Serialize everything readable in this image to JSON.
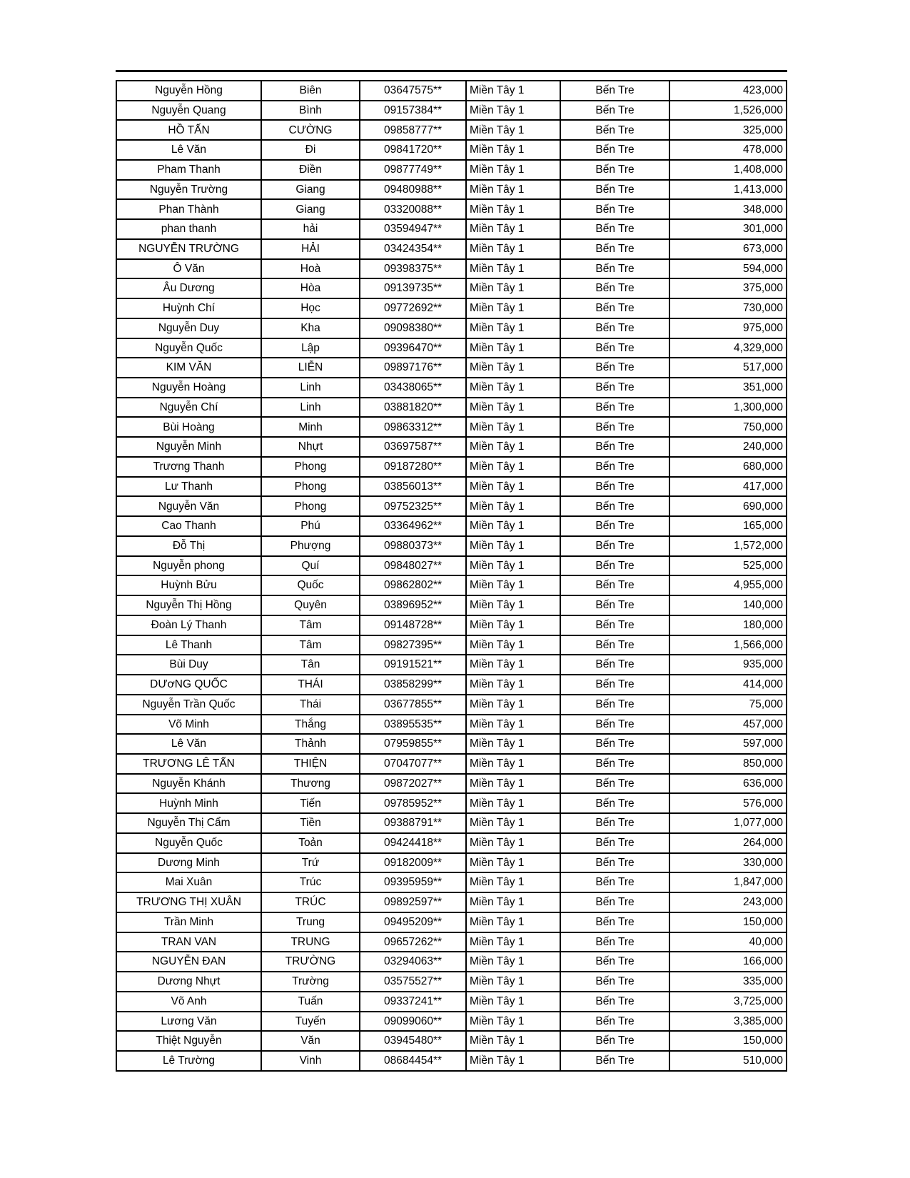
{
  "page": {
    "background": "#ffffff",
    "colors": {
      "border": "#000000",
      "text": "#000000"
    }
  },
  "table": {
    "region_label": "Miền Tây 1",
    "province_label": "Bến Tre",
    "columns": [
      "first_name",
      "last_name",
      "phone",
      "region",
      "province",
      "amount"
    ],
    "rows": [
      {
        "first_name": "Nguyễn Hồng",
        "last_name": "Biên",
        "phone": "03647575**",
        "region": "Miền Tây 1",
        "province": "Bến Tre",
        "amount": "423,000"
      },
      {
        "first_name": "Nguyễn Quang",
        "last_name": "Bình",
        "phone": "09157384**",
        "region": "Miền Tây 1",
        "province": "Bến Tre",
        "amount": "1,526,000"
      },
      {
        "first_name": "HỒ TẤN",
        "last_name": "CƯỜNG",
        "phone": "09858777**",
        "region": "Miền Tây 1",
        "province": "Bến Tre",
        "amount": "325,000"
      },
      {
        "first_name": "Lê Văn",
        "last_name": "Đi",
        "phone": "09841720**",
        "region": "Miền Tây 1",
        "province": "Bến Tre",
        "amount": "478,000"
      },
      {
        "first_name": "Pham Thanh",
        "last_name": "Điền",
        "phone": "09877749**",
        "region": "Miền Tây 1",
        "province": "Bến Tre",
        "amount": "1,408,000"
      },
      {
        "first_name": "Nguyễn Trường",
        "last_name": "Giang",
        "phone": "09480988**",
        "region": "Miền Tây 1",
        "province": "Bến Tre",
        "amount": "1,413,000"
      },
      {
        "first_name": "Phan Thành",
        "last_name": "Giang",
        "phone": "03320088**",
        "region": "Miền Tây 1",
        "province": "Bến Tre",
        "amount": "348,000"
      },
      {
        "first_name": "phan thanh",
        "last_name": "hải",
        "phone": "03594947**",
        "region": "Miền Tây 1",
        "province": "Bến Tre",
        "amount": "301,000"
      },
      {
        "first_name": "NGUYỄN TRƯỜNG",
        "last_name": "HẢI",
        "phone": "03424354**",
        "region": "Miền Tây 1",
        "province": "Bến Tre",
        "amount": "673,000"
      },
      {
        "first_name": "Ô Văn",
        "last_name": "Hoà",
        "phone": "09398375**",
        "region": "Miền Tây 1",
        "province": "Bến Tre",
        "amount": "594,000"
      },
      {
        "first_name": "Âu Dương",
        "last_name": "Hòa",
        "phone": "09139735**",
        "region": "Miền Tây 1",
        "province": "Bến Tre",
        "amount": "375,000"
      },
      {
        "first_name": "Huỳnh Chí",
        "last_name": "Học",
        "phone": "09772692**",
        "region": "Miền Tây 1",
        "province": "Bến Tre",
        "amount": "730,000"
      },
      {
        "first_name": "Nguyễn Duy",
        "last_name": "Kha",
        "phone": "09098380**",
        "region": "Miền Tây 1",
        "province": "Bến Tre",
        "amount": "975,000"
      },
      {
        "first_name": "Nguyễn Quốc",
        "last_name": "Lập",
        "phone": "09396470**",
        "region": "Miền Tây 1",
        "province": "Bến Tre",
        "amount": "4,329,000"
      },
      {
        "first_name": "KIM VĂN",
        "last_name": "LIỄN",
        "phone": "09897176**",
        "region": "Miền Tây 1",
        "province": "Bến Tre",
        "amount": "517,000"
      },
      {
        "first_name": "Nguyễn Hoàng",
        "last_name": "Linh",
        "phone": "03438065**",
        "region": "Miền Tây 1",
        "province": "Bến Tre",
        "amount": "351,000"
      },
      {
        "first_name": "Nguyễn Chí",
        "last_name": "Linh",
        "phone": "03881820**",
        "region": "Miền Tây 1",
        "province": "Bến Tre",
        "amount": "1,300,000"
      },
      {
        "first_name": "Bùi Hoàng",
        "last_name": "Minh",
        "phone": "09863312**",
        "region": "Miền Tây 1",
        "province": "Bến Tre",
        "amount": "750,000"
      },
      {
        "first_name": "Nguyễn Minh",
        "last_name": "Nhựt",
        "phone": "03697587**",
        "region": "Miền Tây 1",
        "province": "Bến Tre",
        "amount": "240,000"
      },
      {
        "first_name": "Trương Thanh",
        "last_name": "Phong",
        "phone": "09187280**",
        "region": "Miền Tây 1",
        "province": "Bến Tre",
        "amount": "680,000"
      },
      {
        "first_name": "Lư Thanh",
        "last_name": "Phong",
        "phone": "03856013**",
        "region": "Miền Tây 1",
        "province": "Bến Tre",
        "amount": "417,000"
      },
      {
        "first_name": "Nguyễn Văn",
        "last_name": "Phong",
        "phone": "09752325**",
        "region": "Miền Tây 1",
        "province": "Bến Tre",
        "amount": "690,000"
      },
      {
        "first_name": "Cao Thanh",
        "last_name": "Phú",
        "phone": "03364962**",
        "region": "Miền Tây 1",
        "province": "Bến Tre",
        "amount": "165,000"
      },
      {
        "first_name": "Đỗ Thị",
        "last_name": "Phượng",
        "phone": "09880373**",
        "region": "Miền Tây 1",
        "province": "Bến Tre",
        "amount": "1,572,000"
      },
      {
        "first_name": "Nguyễn phong",
        "last_name": "Quí",
        "phone": "09848027**",
        "region": "Miền Tây 1",
        "province": "Bến Tre",
        "amount": "525,000"
      },
      {
        "first_name": "Huỳnh Bửu",
        "last_name": "Quốc",
        "phone": "09862802**",
        "region": "Miền Tây 1",
        "province": "Bến Tre",
        "amount": "4,955,000"
      },
      {
        "first_name": "Nguyễn Thị Hồng",
        "last_name": "Quyên",
        "phone": "03896952**",
        "region": "Miền Tây 1",
        "province": "Bến Tre",
        "amount": "140,000"
      },
      {
        "first_name": "Đoàn Lý Thanh",
        "last_name": "Tâm",
        "phone": "09148728**",
        "region": "Miền Tây 1",
        "province": "Bến Tre",
        "amount": "180,000"
      },
      {
        "first_name": "Lê Thanh",
        "last_name": "Tâm",
        "phone": "09827395**",
        "region": "Miền Tây 1",
        "province": "Bến Tre",
        "amount": "1,566,000"
      },
      {
        "first_name": "Bùi Duy",
        "last_name": "Tân",
        "phone": "09191521**",
        "region": "Miền Tây 1",
        "province": "Bến Tre",
        "amount": "935,000"
      },
      {
        "first_name": "DƯơNG QUỐC",
        "last_name": "THÁI",
        "phone": "03858299**",
        "region": "Miền Tây 1",
        "province": "Bến Tre",
        "amount": "414,000"
      },
      {
        "first_name": "Nguyễn Trần Quốc",
        "last_name": "Thái",
        "phone": "03677855**",
        "region": "Miền Tây 1",
        "province": "Bến Tre",
        "amount": "75,000"
      },
      {
        "first_name": "Võ Minh",
        "last_name": "Thắng",
        "phone": "03895535**",
        "region": "Miền Tây 1",
        "province": "Bến Tre",
        "amount": "457,000"
      },
      {
        "first_name": "Lê Văn",
        "last_name": "Thảnh",
        "phone": "07959855**",
        "region": "Miền Tây 1",
        "province": "Bến Tre",
        "amount": "597,000"
      },
      {
        "first_name": "TRƯƠNG LÊ TẤN",
        "last_name": "THIỆN",
        "phone": "07047077**",
        "region": "Miền Tây 1",
        "province": "Bến Tre",
        "amount": "850,000"
      },
      {
        "first_name": "Nguyễn Khánh",
        "last_name": "Thương",
        "phone": "09872027**",
        "region": "Miền Tây 1",
        "province": "Bến Tre",
        "amount": "636,000"
      },
      {
        "first_name": "Huỳnh Minh",
        "last_name": "Tiến",
        "phone": "09785952**",
        "region": "Miền Tây 1",
        "province": "Bến Tre",
        "amount": "576,000"
      },
      {
        "first_name": "Nguyễn Thị Cẩm",
        "last_name": "Tiền",
        "phone": "09388791**",
        "region": "Miền Tây 1",
        "province": "Bến Tre",
        "amount": "1,077,000"
      },
      {
        "first_name": "Nguyễn Quốc",
        "last_name": "Toản",
        "phone": "09424418**",
        "region": "Miền Tây 1",
        "province": "Bến Tre",
        "amount": "264,000"
      },
      {
        "first_name": "Dương Minh",
        "last_name": "Trứ",
        "phone": "09182009**",
        "region": "Miền Tây 1",
        "province": "Bến Tre",
        "amount": "330,000"
      },
      {
        "first_name": "Mai Xuân",
        "last_name": "Trúc",
        "phone": "09395959**",
        "region": "Miền Tây 1",
        "province": "Bến Tre",
        "amount": "1,847,000"
      },
      {
        "first_name": "TRƯƠNG THỊ XUÂN",
        "last_name": "TRÚC",
        "phone": "09892597**",
        "region": "Miền Tây 1",
        "province": "Bến Tre",
        "amount": "243,000"
      },
      {
        "first_name": "Trần Minh",
        "last_name": "Trung",
        "phone": "09495209**",
        "region": "Miền Tây 1",
        "province": "Bến Tre",
        "amount": "150,000"
      },
      {
        "first_name": "TRAN VAN",
        "last_name": "TRUNG",
        "phone": "09657262**",
        "region": "Miền Tây 1",
        "province": "Bến Tre",
        "amount": "40,000"
      },
      {
        "first_name": "NGUYỄN ĐAN",
        "last_name": "TRƯỜNG",
        "phone": "03294063**",
        "region": "Miền Tây 1",
        "province": "Bến Tre",
        "amount": "166,000"
      },
      {
        "first_name": "Dương Nhựt",
        "last_name": "Trường",
        "phone": "03575527**",
        "region": "Miền Tây 1",
        "province": "Bến Tre",
        "amount": "335,000"
      },
      {
        "first_name": "Võ Anh",
        "last_name": "Tuấn",
        "phone": "09337241**",
        "region": "Miền Tây 1",
        "province": "Bến Tre",
        "amount": "3,725,000"
      },
      {
        "first_name": "Lương Văn",
        "last_name": "Tuyến",
        "phone": "09099060**",
        "region": "Miền Tây 1",
        "province": "Bến Tre",
        "amount": "3,385,000"
      },
      {
        "first_name": "Thiệt Nguyễn",
        "last_name": "Văn",
        "phone": "03945480**",
        "region": "Miền Tây 1",
        "province": "Bến Tre",
        "amount": "150,000"
      },
      {
        "first_name": "Lê Trường",
        "last_name": "Vinh",
        "phone": "08684454**",
        "region": "Miền Tây 1",
        "province": "Bến Tre",
        "amount": "510,000"
      }
    ]
  }
}
